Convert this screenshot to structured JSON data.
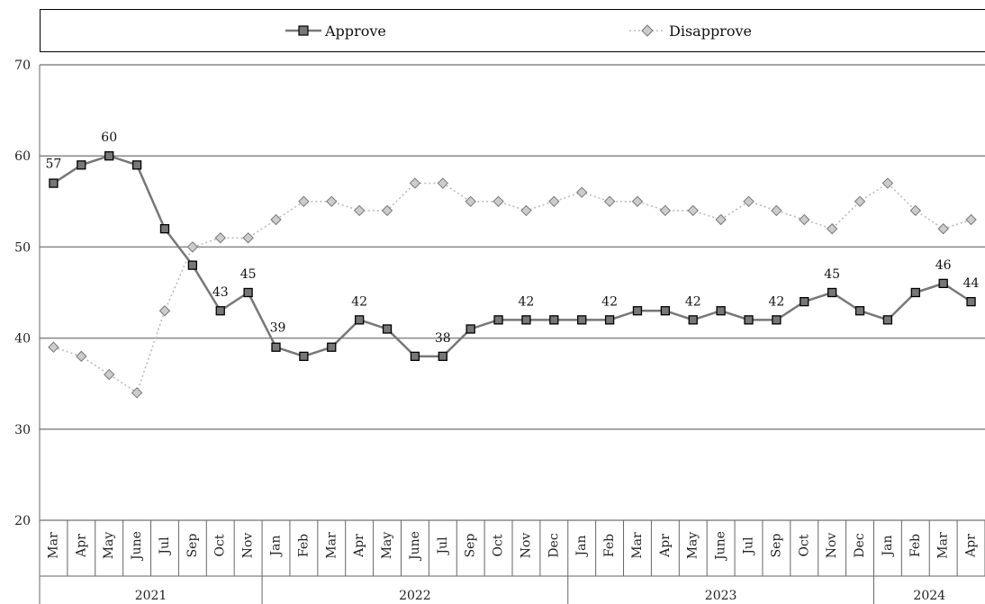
{
  "chart_data": {
    "type": "line",
    "legend": {
      "placement": "top",
      "entries": [
        "Approve",
        "Disapprove"
      ]
    },
    "ylim": [
      20,
      70
    ],
    "yticks": [
      20,
      30,
      40,
      50,
      60,
      70
    ],
    "grid": true,
    "x": [
      "Mar",
      "Apr",
      "May",
      "June",
      "Jul",
      "Sep",
      "Oct",
      "Nov",
      "Jan",
      "Feb",
      "Mar",
      "Apr",
      "May",
      "June",
      "Jul",
      "Sep",
      "Oct",
      "Nov",
      "Dec",
      "Jan",
      "Feb",
      "Mar",
      "Apr",
      "May",
      "June",
      "Jul",
      "Sep",
      "Oct",
      "Nov",
      "Dec",
      "Jan",
      "Feb",
      "Mar",
      "Apr"
    ],
    "years": [
      {
        "label": "2021",
        "count": 8
      },
      {
        "label": "2022",
        "count": 11
      },
      {
        "label": "2023",
        "count": 11
      },
      {
        "label": "2024",
        "count": 4
      }
    ],
    "series": [
      {
        "name": "Approve",
        "color": "#777777",
        "marker": "square",
        "values": [
          57,
          59,
          60,
          59,
          52,
          48,
          43,
          45,
          39,
          38,
          39,
          42,
          41,
          38,
          38,
          41,
          42,
          42,
          42,
          42,
          42,
          43,
          43,
          42,
          43,
          42,
          42,
          44,
          45,
          43,
          42,
          45,
          46,
          44
        ]
      },
      {
        "name": "Disapprove",
        "color": "#bbbbbb",
        "marker": "diamond",
        "values": [
          39,
          38,
          36,
          34,
          43,
          50,
          51,
          51,
          53,
          55,
          55,
          54,
          54,
          57,
          57,
          55,
          55,
          54,
          55,
          56,
          55,
          55,
          54,
          54,
          53,
          55,
          54,
          53,
          52,
          55,
          57,
          54,
          52,
          53
        ]
      }
    ],
    "data_labels": [
      {
        "series": "Approve",
        "index": 0,
        "text": "57"
      },
      {
        "series": "Approve",
        "index": 2,
        "text": "60"
      },
      {
        "series": "Approve",
        "index": 6,
        "text": "43"
      },
      {
        "series": "Approve",
        "index": 7,
        "text": "45"
      },
      {
        "series": "Approve",
        "index": 8,
        "text": "39"
      },
      {
        "series": "Approve",
        "index": 11,
        "text": "42"
      },
      {
        "series": "Approve",
        "index": 14,
        "text": "38"
      },
      {
        "series": "Approve",
        "index": 17,
        "text": "42"
      },
      {
        "series": "Approve",
        "index": 20,
        "text": "42"
      },
      {
        "series": "Approve",
        "index": 23,
        "text": "42"
      },
      {
        "series": "Approve",
        "index": 26,
        "text": "42"
      },
      {
        "series": "Approve",
        "index": 28,
        "text": "45"
      },
      {
        "series": "Approve",
        "index": 32,
        "text": "46"
      },
      {
        "series": "Approve",
        "index": 33,
        "text": "44"
      }
    ]
  }
}
